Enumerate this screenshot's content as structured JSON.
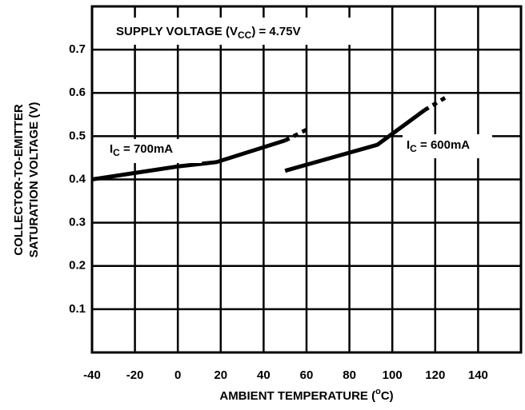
{
  "chart_data": {
    "type": "line",
    "annotations": [
      {
        "main": "SUPPLY VOLTAGE (V",
        "sub": "CC",
        "rest": ") = 4.75V"
      },
      {
        "main": "I",
        "sub": "C",
        "rest": " = 700mA"
      },
      {
        "main": "I",
        "sub": "C",
        "rest": " = 600mA"
      }
    ],
    "ylabel": [
      "COLLECTOR-TO-EMITTER",
      "SATURATION VOLTAGE (V)"
    ],
    "xlabel": {
      "main": "AMBIENT TEMPERATURE (",
      "sup": "o",
      "rest": "C)"
    },
    "xlim": [
      -40,
      160
    ],
    "ylim": [
      0,
      0.8
    ],
    "xticks": [
      -40,
      -20,
      0,
      20,
      40,
      60,
      80,
      100,
      120,
      140
    ],
    "yticks": [
      0.1,
      0.2,
      0.3,
      0.4,
      0.5,
      0.6,
      0.7
    ],
    "grid": true,
    "series": [
      {
        "color": "#000000",
        "style": "solid",
        "x": [
          -40,
          0,
          18,
          50
        ],
        "values": [
          0.4,
          0.43,
          0.44,
          0.49
        ]
      },
      {
        "color": "#000000",
        "style": "dashed",
        "x": [
          50,
          62
        ],
        "values": [
          0.49,
          0.52
        ]
      },
      {
        "color": "#000000",
        "style": "solid",
        "x": [
          50,
          93,
          115
        ],
        "values": [
          0.42,
          0.48,
          0.56
        ]
      },
      {
        "color": "#000000",
        "style": "dashed",
        "x": [
          115,
          125
        ],
        "values": [
          0.56,
          0.59
        ]
      }
    ]
  }
}
